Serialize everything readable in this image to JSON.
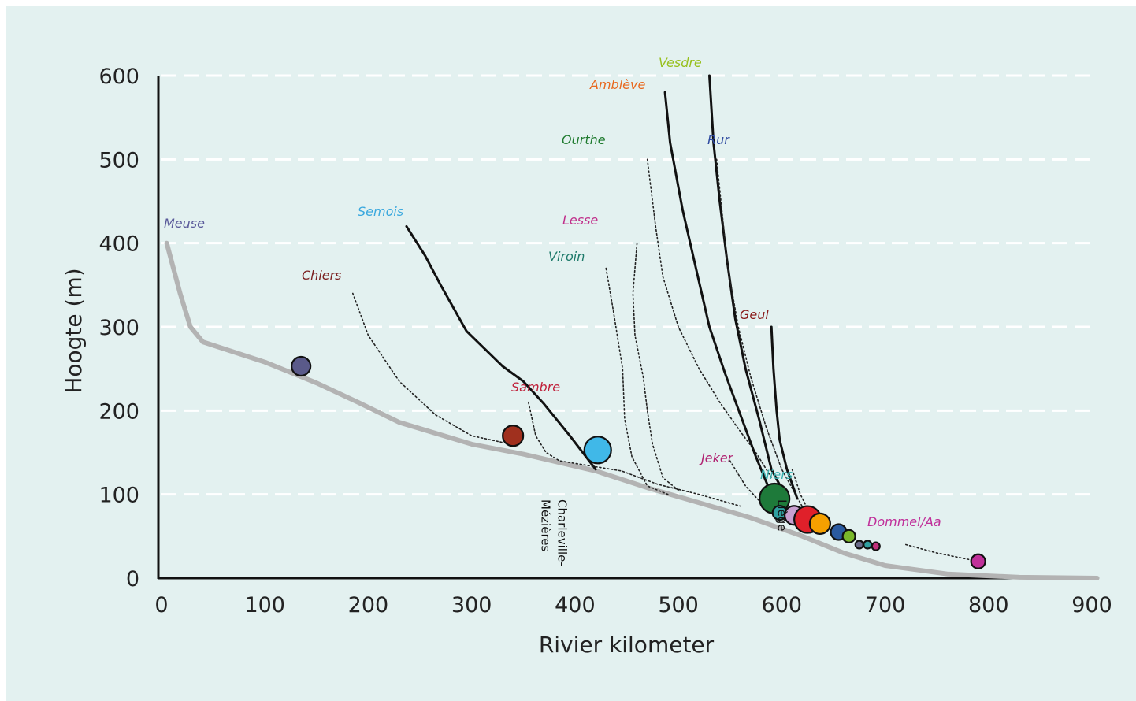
{
  "chart_data": {
    "type": "line",
    "xlabel": "Rivier kilometer",
    "ylabel": "Hoogte (m)",
    "xlim": [
      0,
      900
    ],
    "ylim": [
      0,
      600
    ],
    "x_ticks": [
      "0",
      "100",
      "200",
      "300",
      "400",
      "500",
      "600",
      "700",
      "800",
      "900"
    ],
    "y_ticks": [
      "0",
      "100",
      "200",
      "300",
      "400",
      "500",
      "600"
    ],
    "grid": "horizontal dashed",
    "series": [
      {
        "name": "Meuse",
        "color": "#5a5a9a",
        "style": "main",
        "points": [
          [
            5,
            400
          ],
          [
            18,
            340
          ],
          [
            28,
            300
          ],
          [
            40,
            282
          ],
          [
            100,
            258
          ],
          [
            150,
            233
          ],
          [
            190,
            210
          ],
          [
            230,
            186
          ],
          [
            300,
            160
          ],
          [
            350,
            148
          ],
          [
            420,
            128
          ],
          [
            470,
            108
          ],
          [
            520,
            90
          ],
          [
            570,
            72
          ],
          [
            620,
            50
          ],
          [
            660,
            30
          ],
          [
            700,
            15
          ],
          [
            760,
            5
          ],
          [
            830,
            1
          ],
          [
            905,
            0
          ]
        ]
      },
      {
        "name": "Chiers",
        "color": "#7a2020",
        "style": "dotted",
        "points": [
          [
            185,
            340
          ],
          [
            200,
            290
          ],
          [
            230,
            235
          ],
          [
            265,
            195
          ],
          [
            300,
            170
          ],
          [
            330,
            162
          ]
        ]
      },
      {
        "name": "Semois",
        "color": "#3aa8de",
        "style": "solid",
        "points": [
          [
            237,
            420
          ],
          [
            255,
            385
          ],
          [
            270,
            350
          ],
          [
            295,
            295
          ],
          [
            330,
            253
          ],
          [
            350,
            235
          ],
          [
            370,
            208
          ],
          [
            395,
            170
          ],
          [
            420,
            130
          ]
        ]
      },
      {
        "name": "Sambre",
        "color": "#c0203a",
        "style": "dotted",
        "points": [
          [
            355,
            210
          ],
          [
            362,
            170
          ],
          [
            372,
            150
          ],
          [
            385,
            140
          ],
          [
            405,
            136
          ],
          [
            445,
            128
          ],
          [
            480,
            112
          ],
          [
            520,
            100
          ],
          [
            560,
            86
          ]
        ]
      },
      {
        "name": "Lesse",
        "color": "#c02e8a",
        "style": "dotted",
        "points": [
          [
            460,
            400
          ],
          [
            456,
            340
          ],
          [
            458,
            290
          ],
          [
            466,
            240
          ],
          [
            470,
            200
          ],
          [
            475,
            160
          ],
          [
            485,
            120
          ],
          [
            500,
            105
          ]
        ]
      },
      {
        "name": "Viroin",
        "color": "#207a6a",
        "style": "dotted",
        "points": [
          [
            430,
            370
          ],
          [
            437,
            320
          ],
          [
            446,
            250
          ],
          [
            448,
            190
          ],
          [
            455,
            145
          ],
          [
            470,
            110
          ],
          [
            490,
            100
          ]
        ]
      },
      {
        "name": "Ourthe",
        "color": "#1e8a3a",
        "style": "dotted",
        "points": [
          [
            470,
            500
          ],
          [
            478,
            420
          ],
          [
            485,
            360
          ],
          [
            500,
            300
          ],
          [
            520,
            250
          ],
          [
            540,
            210
          ],
          [
            560,
            175
          ],
          [
            575,
            150
          ],
          [
            590,
            120
          ]
        ]
      },
      {
        "name": "Amblève",
        "color": "#e8681e",
        "style": "solid",
        "points": [
          [
            487,
            580
          ],
          [
            492,
            520
          ],
          [
            504,
            440
          ],
          [
            517,
            370
          ],
          [
            530,
            300
          ],
          [
            545,
            245
          ],
          [
            560,
            195
          ],
          [
            575,
            145
          ],
          [
            590,
            100
          ]
        ]
      },
      {
        "name": "Vesdre",
        "color": "#98c01e",
        "style": "solid",
        "points": [
          [
            530,
            600
          ],
          [
            534,
            520
          ],
          [
            540,
            450
          ],
          [
            547,
            380
          ],
          [
            555,
            310
          ],
          [
            565,
            250
          ],
          [
            578,
            190
          ],
          [
            590,
            130
          ],
          [
            605,
            95
          ]
        ]
      },
      {
        "name": "Rur",
        "color": "#2e4aa0",
        "style": "dotted",
        "points": [
          [
            537,
            500
          ],
          [
            542,
            440
          ],
          [
            548,
            370
          ],
          [
            558,
            300
          ],
          [
            570,
            240
          ],
          [
            585,
            180
          ],
          [
            600,
            130
          ],
          [
            620,
            85
          ]
        ]
      },
      {
        "name": "Geul",
        "color": "#8a1a1a",
        "style": "solid",
        "points": [
          [
            590,
            300
          ],
          [
            592,
            250
          ],
          [
            595,
            200
          ],
          [
            598,
            165
          ],
          [
            605,
            130
          ],
          [
            615,
            95
          ]
        ]
      },
      {
        "name": "Jeker",
        "color": "#b02070",
        "style": "dotted",
        "points": [
          [
            550,
            140
          ],
          [
            565,
            110
          ],
          [
            580,
            90
          ]
        ]
      },
      {
        "name": "Niers",
        "color": "#3ab0b0",
        "style": "dotted",
        "points": [
          [
            610,
            130
          ],
          [
            618,
            100
          ],
          [
            630,
            70
          ]
        ]
      },
      {
        "name": "Dommel/Aa",
        "color": "#c0309a",
        "style": "dotted",
        "points": [
          [
            720,
            40
          ],
          [
            750,
            30
          ],
          [
            790,
            20
          ]
        ]
      }
    ],
    "bubbles": [
      {
        "x": 135,
        "y": 253,
        "r": 12,
        "color": "#5a5a8a"
      },
      {
        "x": 340,
        "y": 170,
        "r": 13,
        "color": "#a0301e"
      },
      {
        "x": 422,
        "y": 153,
        "r": 17,
        "color": "#40b8e8"
      },
      {
        "x": 593,
        "y": 95,
        "r": 19,
        "color": "#1e7a3a"
      },
      {
        "x": 598,
        "y": 78,
        "r": 9,
        "color": "#30a0a0"
      },
      {
        "x": 612,
        "y": 75,
        "r": 12,
        "color": "#c8a0d0"
      },
      {
        "x": 625,
        "y": 70,
        "r": 17,
        "color": "#e0202a"
      },
      {
        "x": 637,
        "y": 65,
        "r": 13,
        "color": "#f5a000"
      },
      {
        "x": 655,
        "y": 55,
        "r": 10,
        "color": "#2a5aa0"
      },
      {
        "x": 665,
        "y": 50,
        "r": 8,
        "color": "#7ab82a"
      },
      {
        "x": 675,
        "y": 40,
        "r": 5,
        "color": "#6a6a8a"
      },
      {
        "x": 683,
        "y": 40,
        "r": 5,
        "color": "#30a0a0"
      },
      {
        "x": 691,
        "y": 38,
        "r": 5,
        "color": "#c0307a"
      },
      {
        "x": 790,
        "y": 20,
        "r": 9,
        "color": "#c0309a"
      }
    ],
    "annotations": [
      {
        "id": "charleville",
        "text": "Charleville-\nMézières",
        "lines": [
          "Charleville-",
          "Mézières"
        ],
        "x": 380
      },
      {
        "id": "liege",
        "text": "Liège",
        "lines": [
          "Liège"
        ],
        "x": 600
      }
    ]
  },
  "river_labels": [
    {
      "id": "meuse",
      "text": "Meuse",
      "color": "#5a5a9a"
    },
    {
      "id": "chiers",
      "text": "Chiers",
      "color": "#7a1e1e"
    },
    {
      "id": "semois",
      "text": "Semois",
      "color": "#3aa8de"
    },
    {
      "id": "sambre",
      "text": "Sambre",
      "color": "#c0203a"
    },
    {
      "id": "lesse",
      "text": "Lesse",
      "color": "#c02e8a"
    },
    {
      "id": "viroin",
      "text": "Viroin",
      "color": "#1e7a6a"
    },
    {
      "id": "ourthe",
      "text": "Ourthe",
      "color": "#1e7a2e"
    },
    {
      "id": "ambleve",
      "text": "Amblève",
      "color": "#e8681e"
    },
    {
      "id": "vesdre",
      "text": "Vesdre",
      "color": "#98c01e"
    },
    {
      "id": "rur",
      "text": "Rur",
      "color": "#2e4aa0"
    },
    {
      "id": "geul",
      "text": "Geul",
      "color": "#8a1a1a"
    },
    {
      "id": "jeker",
      "text": "Jeker",
      "color": "#b02070"
    },
    {
      "id": "niers",
      "text": "Niers",
      "color": "#3ab0b0"
    },
    {
      "id": "dommel",
      "text": "Dommel/Aa",
      "color": "#c0309a"
    }
  ]
}
